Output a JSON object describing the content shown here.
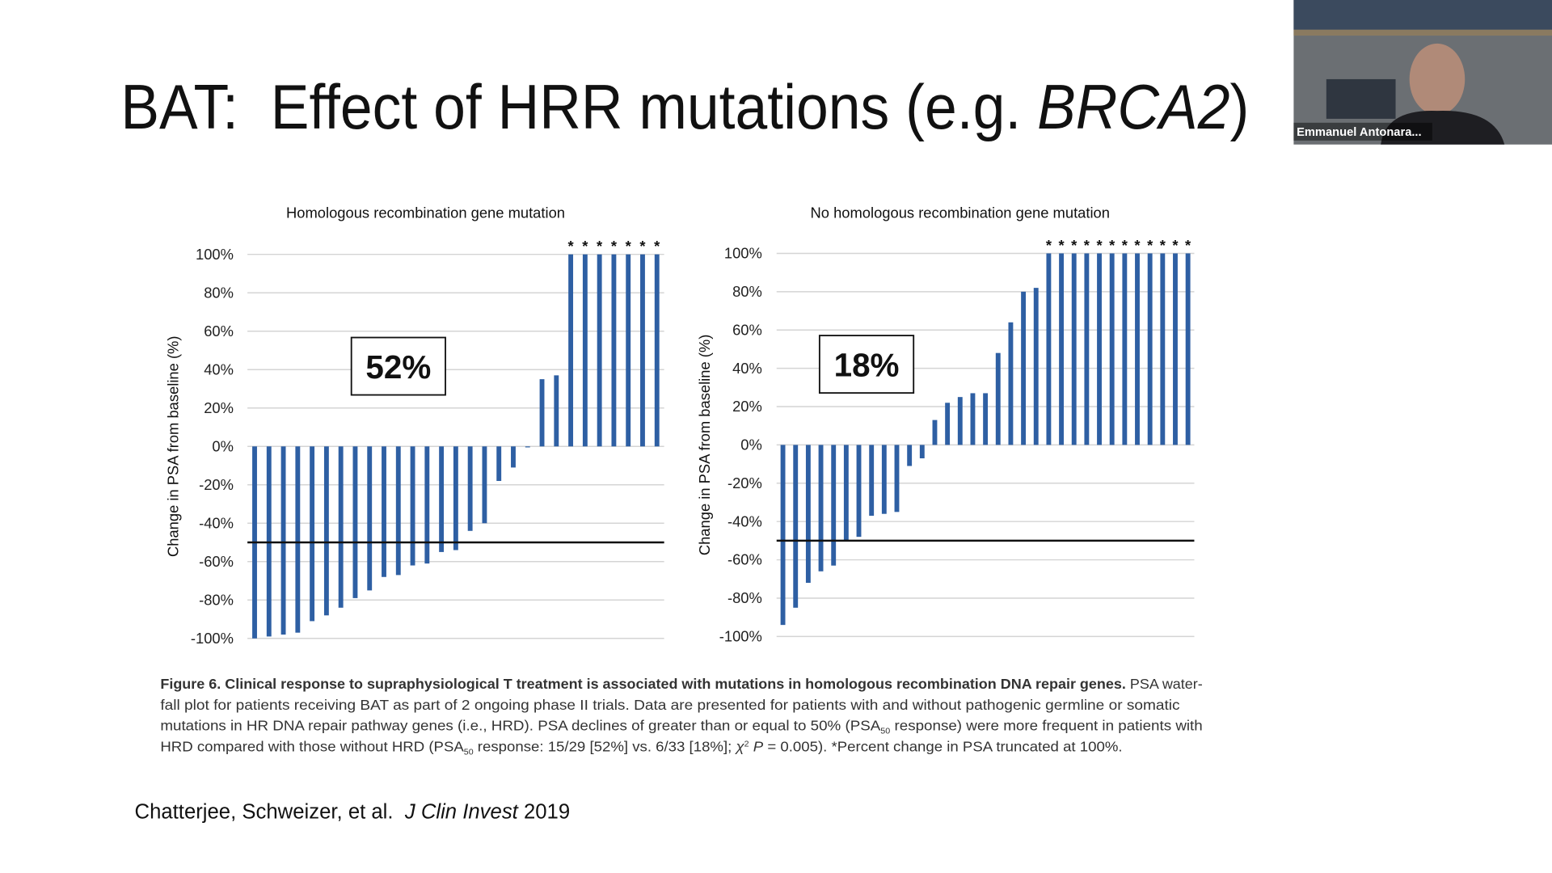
{
  "slide_title": [
    "BAT:  Effect of HRR mutations (e.g. ",
    "BRCA2",
    ")"
  ],
  "participant_name": "Emmanuel Antonara...",
  "chart_data": [
    {
      "type": "bar",
      "title": "Homologous recombination gene mutation",
      "ylabel": "Change in PSA from baseline (%)",
      "annotation": "52%",
      "truncation_marker": "*",
      "reference_line": -50,
      "color": "#2e5fa3",
      "grid": true,
      "ylim": [
        -100,
        100
      ],
      "yticks": [
        {
          "value": 100,
          "label": "100%"
        },
        {
          "value": 80,
          "label": "80%"
        },
        {
          "value": 60,
          "label": "60%"
        },
        {
          "value": 40,
          "label": "40%"
        },
        {
          "value": 20,
          "label": "20%"
        },
        {
          "value": 0,
          "label": "0%"
        },
        {
          "value": -20,
          "label": "-20%"
        },
        {
          "value": -40,
          "label": "-40%"
        },
        {
          "value": -60,
          "label": "-60%"
        },
        {
          "value": -80,
          "label": "-80%"
        },
        {
          "value": -100,
          "label": "-100%"
        }
      ],
      "values": [
        -100,
        -99,
        -98,
        -97,
        -91,
        -88,
        -84,
        -79,
        -75,
        -68,
        -67,
        -62,
        -61,
        -55,
        -54,
        -44,
        -40,
        -18,
        -11,
        0,
        35,
        37,
        100,
        100,
        100,
        100,
        100,
        100,
        100
      ]
    },
    {
      "type": "bar",
      "title": "No homologous recombination gene mutation",
      "ylabel": "Change in PSA from baseline (%)",
      "annotation": "18%",
      "truncation_marker": "*",
      "reference_line": -50,
      "color": "#2e5fa3",
      "grid": true,
      "ylim": [
        -100,
        100
      ],
      "yticks": [
        {
          "value": 100,
          "label": "100%"
        },
        {
          "value": 80,
          "label": "80%"
        },
        {
          "value": 60,
          "label": "60%"
        },
        {
          "value": 40,
          "label": "40%"
        },
        {
          "value": 20,
          "label": "20%"
        },
        {
          "value": 0,
          "label": "0%"
        },
        {
          "value": -20,
          "label": "-20%"
        },
        {
          "value": -40,
          "label": "-40%"
        },
        {
          "value": -60,
          "label": "-60%"
        },
        {
          "value": -80,
          "label": "-80%"
        },
        {
          "value": -100,
          "label": "-100%"
        }
      ],
      "values": [
        -94,
        -85,
        -72,
        -66,
        -63,
        -50,
        -48,
        -37,
        -36,
        -35,
        -11,
        -7,
        13,
        22,
        25,
        27,
        27,
        48,
        64,
        80,
        82,
        100,
        100,
        100,
        100,
        100,
        100,
        100,
        100,
        100,
        100,
        100,
        100
      ]
    }
  ],
  "caption": [
    [
      {
        "text": "Figure 6. Clinical response to supraphysiological T treatment is associated with mutations in homologous recombination DNA repair genes.",
        "bold": true
      },
      {
        "text": " PSA water-"
      }
    ],
    [
      {
        "text": "fall plot for patients receiving BAT as part of 2 ongoing phase II trials. Data are presented for patients with and without pathogenic germline or somatic"
      }
    ],
    [
      {
        "text": "mutations in HR DNA repair pathway genes (i.e., HRD). PSA declines of greater than or equal to 50% (PSA"
      },
      {
        "text": "50",
        "sub": true
      },
      {
        "text": " response) were more frequent in patients with"
      }
    ],
    [
      {
        "text": "HRD compared with those without HRD (PSA"
      },
      {
        "text": "50",
        "sub": true
      },
      {
        "text": " response: 15/29 [52%] vs. 6/33 [18%]; "
      },
      {
        "text": "χ",
        "italic": true
      },
      {
        "text": "2",
        "sup": true
      },
      {
        "text": " "
      },
      {
        "text": "P",
        "italic": true
      },
      {
        "text": " = 0.005). *Percent change in PSA truncated at 100%."
      }
    ]
  ],
  "citation": [
    {
      "text": "Chatterjee, Schweizer, et al.  "
    },
    {
      "text": "J Clin Invest",
      "italic": true
    },
    {
      "text": " 2019"
    }
  ]
}
